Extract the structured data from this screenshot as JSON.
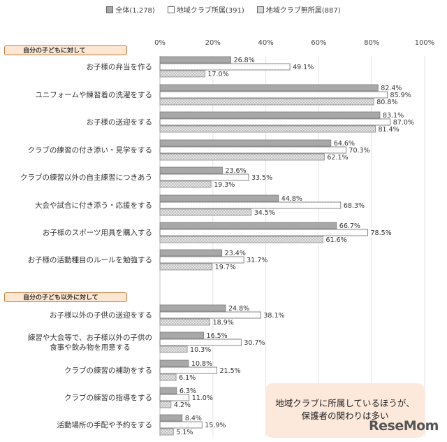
{
  "chart_data": {
    "type": "bar",
    "orientation": "horizontal",
    "title": "",
    "xlim": [
      0,
      100
    ],
    "x_ticks": [
      "0%",
      "20%",
      "40%",
      "60%",
      "80%",
      "100%"
    ],
    "grid": true,
    "legend": {
      "position": "top",
      "entries": [
        "全体(1,278)",
        "地域クラブ所属(391)",
        "地域クラブ無所属(887)"
      ]
    },
    "series_colors": [
      "#a8a8a8",
      "#ffffff",
      "#d6d6d6"
    ],
    "sections": [
      {
        "label": "自分の子どもに対して",
        "categories": [
          {
            "label": [
              "お子様の弁当を作る"
            ],
            "values": [
              26.8,
              49.1,
              17.0
            ]
          },
          {
            "label": [
              "ユニフォームや練習着の洗濯をする"
            ],
            "values": [
              82.4,
              85.9,
              80.8
            ]
          },
          {
            "label": [
              "お子様の送迎をする"
            ],
            "values": [
              83.1,
              87.0,
              81.4
            ]
          },
          {
            "label": [
              "クラブの練習の付き添い・見学をする"
            ],
            "values": [
              64.6,
              70.3,
              62.1
            ]
          },
          {
            "label": [
              "クラブの練習以外の自主練習につきあう"
            ],
            "values": [
              23.6,
              33.5,
              19.3
            ]
          },
          {
            "label": [
              "大会や試合に付き添う・応援をする"
            ],
            "values": [
              44.8,
              68.3,
              34.5
            ]
          },
          {
            "label": [
              "お子様のスポーツ用具を購入する"
            ],
            "values": [
              66.7,
              78.5,
              61.6
            ]
          },
          {
            "label": [
              "お子様の活動種目のルールを勉強する"
            ],
            "values": [
              23.4,
              31.7,
              19.7
            ]
          }
        ]
      },
      {
        "label": "自分の子ども以外に対して",
        "categories": [
          {
            "label": [
              "お子様以外の子供の送迎をする"
            ],
            "values": [
              24.8,
              38.1,
              18.9
            ]
          },
          {
            "label": [
              "練習や大会等で、お子様以外の子供の",
              "食事や飲み物を用意する"
            ],
            "values": [
              16.5,
              30.7,
              10.3
            ]
          },
          {
            "label": [
              "クラブの練習の補助をする"
            ],
            "values": [
              10.8,
              21.5,
              6.1
            ]
          },
          {
            "label": [
              "クラブの練習の指導をする"
            ],
            "values": [
              6.3,
              11.0,
              4.2
            ]
          },
          {
            "label": [
              "活動場所の手配や予約をする"
            ],
            "values": [
              8.4,
              15.9,
              5.1
            ]
          }
        ]
      }
    ]
  },
  "callout": {
    "line1": "地域クラブに所属しているほうが、",
    "line2": "保護者の関わりは多い"
  },
  "logo": {
    "text": "ReseMom"
  }
}
